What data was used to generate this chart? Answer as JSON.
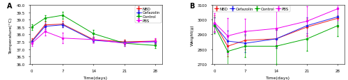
{
  "time_points": [
    0,
    3,
    7,
    14,
    21,
    28
  ],
  "xticks": [
    0,
    7,
    14,
    21,
    28
  ],
  "xtick_labels": [
    "0",
    "7",
    "14",
    "21",
    "28"
  ],
  "temp_NBD": [
    37.55,
    38.65,
    38.7,
    37.65,
    37.5,
    37.55
  ],
  "temp_NBD_err": [
    0.2,
    0.2,
    0.2,
    0.2,
    0.15,
    0.15
  ],
  "temp_Cefazolin": [
    37.5,
    38.55,
    38.65,
    37.6,
    37.45,
    37.5
  ],
  "temp_Cefazolin_err": [
    0.15,
    0.2,
    0.15,
    0.15,
    0.12,
    0.12
  ],
  "temp_Control": [
    38.5,
    39.1,
    39.3,
    38.05,
    37.4,
    37.25
  ],
  "temp_Control_err": [
    0.18,
    0.2,
    0.25,
    0.25,
    0.18,
    0.18
  ],
  "temp_PBS": [
    37.4,
    38.2,
    37.75,
    37.65,
    37.4,
    37.55
  ],
  "temp_PBS_err": [
    0.18,
    0.28,
    0.35,
    0.2,
    0.18,
    0.18
  ],
  "weight_NBD": [
    2975,
    2820,
    2860,
    2870,
    2950,
    3010
  ],
  "weight_NBD_err": [
    55,
    70,
    60,
    60,
    55,
    60
  ],
  "weight_Cefazolin": [
    2965,
    2855,
    2840,
    2870,
    2960,
    3020
  ],
  "weight_Cefazolin_err": [
    50,
    70,
    60,
    60,
    55,
    60
  ],
  "weight_Control": [
    2960,
    2785,
    2820,
    2820,
    2870,
    2960
  ],
  "weight_Control_err": [
    55,
    110,
    75,
    120,
    80,
    70
  ],
  "weight_PBS": [
    2980,
    2890,
    2920,
    2940,
    2990,
    3075
  ],
  "weight_PBS_err": [
    65,
    120,
    85,
    120,
    100,
    80
  ],
  "color_NBD": "#EE2222",
  "color_Cefazolin": "#2222EE",
  "color_Control": "#00AA00",
  "color_PBS": "#EE00EE",
  "temp_ylim": [
    36.0,
    40.0
  ],
  "temp_yticks": [
    36.0,
    36.5,
    37.0,
    37.5,
    38.0,
    38.5,
    39.0,
    39.5,
    40.0
  ],
  "weight_ylim": [
    2700,
    3100
  ],
  "weight_yticks": [
    2700,
    2800,
    2900,
    3000,
    3100
  ],
  "xlabel": "Time(days)",
  "ylabel_temp": "Temperature(°C)",
  "ylabel_weight": "Weight(g)",
  "label_A": "A",
  "label_B": "B",
  "fontsize_tick": 4.0,
  "fontsize_label": 4.5,
  "fontsize_legend": 4.0,
  "fontsize_panel": 7,
  "linewidth": 0.7,
  "markersize": 1.5,
  "capsize": 1.0,
  "elinewidth": 0.5
}
